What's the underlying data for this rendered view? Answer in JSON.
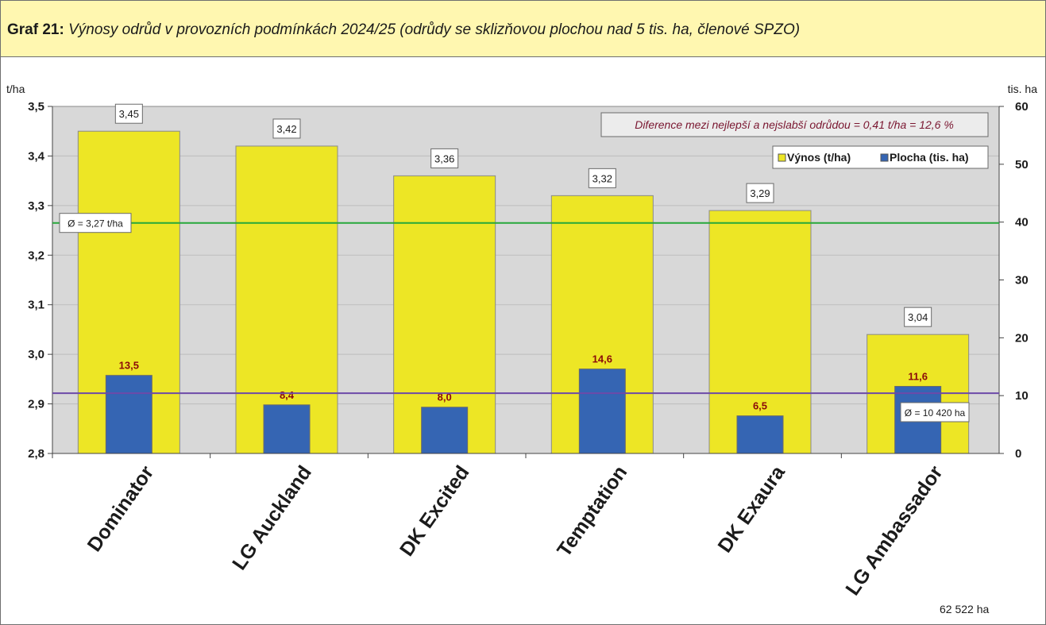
{
  "header": {
    "label": "Graf 21:",
    "title": "Výnosy odrůd v provozních podmínkách 2024/25 (odrůdy se sklizňovou plochou nad 5 tis. ha, členové SPZO)"
  },
  "chart_data": {
    "type": "bar",
    "categories": [
      "Dominator",
      "LG Auckland",
      "DK Excited",
      "Temptation",
      "DK Exaura",
      "LG Ambassador"
    ],
    "series": [
      {
        "name": "Výnos (t/ha)",
        "axis": "left",
        "color": "#ede625",
        "values": [
          3.45,
          3.42,
          3.36,
          3.32,
          3.29,
          3.04
        ],
        "labels": [
          "3,45",
          "3,42",
          "3,36",
          "3,32",
          "3,29",
          "3,04"
        ]
      },
      {
        "name": "Plocha (tis. ha)",
        "axis": "right",
        "color": "#3565b3",
        "values": [
          13.5,
          8.4,
          8.0,
          14.6,
          6.5,
          11.6
        ],
        "labels": [
          "13,5",
          "8,4",
          "8,0",
          "14,6",
          "6,5",
          "11,6"
        ]
      }
    ],
    "y_left": {
      "unit": "t/ha",
      "range": [
        2.8,
        3.5
      ],
      "ticks": [
        2.8,
        2.9,
        3.0,
        3.1,
        3.2,
        3.3,
        3.4,
        3.5
      ],
      "tick_labels": [
        "2,8",
        "2,9",
        "3,0",
        "3,1",
        "3,2",
        "3,3",
        "3,4",
        "3,5"
      ]
    },
    "y_right": {
      "unit": "tis. ha",
      "range": [
        0,
        60
      ],
      "ticks": [
        0,
        10,
        20,
        30,
        40,
        50,
        60
      ],
      "tick_labels": [
        "0",
        "10",
        "20",
        "30",
        "40",
        "50",
        "60"
      ]
    },
    "reference_lines": [
      {
        "axis": "left",
        "value": 3.265,
        "label": "Ø = 3,27 t/ha",
        "color": "#27a83a"
      },
      {
        "axis": "right",
        "value": 10.42,
        "label": "Ø = 10 420 ha",
        "color": "#6d4aa8"
      }
    ],
    "annotation": "Diference mezi nejlepší a nejslabší odrůdou = 0,41 t/ha = 12,6 %",
    "total_label": "62 522 ha",
    "legend_position": "top-right",
    "grid": true,
    "plot_background": "#d8d8d8"
  }
}
